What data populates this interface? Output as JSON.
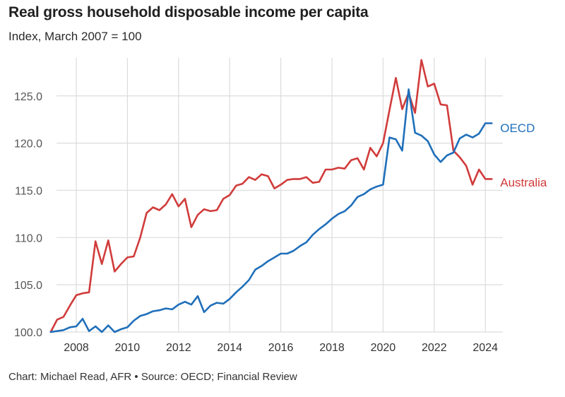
{
  "header": {
    "title": "Real gross household disposable income per capita",
    "subtitle": "Index, March 2007 = 100"
  },
  "footer": {
    "source": "Chart: Michael Read, AFR • Source: OECD; Financial Review"
  },
  "colors": {
    "oecd": "#1f6fba",
    "australia": "#d13b3b",
    "grid": "#dcdcdc"
  },
  "chart_data": {
    "type": "line",
    "title": "Real gross household disposable income per capita",
    "subtitle": "Index, March 2007 = 100",
    "ylim": [
      100,
      128
    ],
    "xlim": [
      2007.0,
      2024.5
    ],
    "yticks": [
      100.0,
      105.0,
      110.0,
      115.0,
      120.0,
      125.0
    ],
    "yticklabels": [
      "100.0",
      "105.0",
      "110.0",
      "115.0",
      "120.0",
      "125.0"
    ],
    "xticks": [
      2008,
      2010,
      2012,
      2014,
      2016,
      2018,
      2020,
      2022,
      2024
    ],
    "xticklabels": [
      "2008",
      "2010",
      "2012",
      "2014",
      "2016",
      "2018",
      "2020",
      "2022",
      "2024"
    ],
    "grid": "vertical-and-horizontal",
    "series": [
      {
        "name": "OECD",
        "x": [
          2007.0,
          2007.25,
          2007.5,
          2007.75,
          2008.0,
          2008.25,
          2008.5,
          2008.75,
          2009.0,
          2009.25,
          2009.5,
          2009.75,
          2010.0,
          2010.25,
          2010.5,
          2010.75,
          2011.0,
          2011.25,
          2011.5,
          2011.75,
          2012.0,
          2012.25,
          2012.5,
          2012.75,
          2013.0,
          2013.25,
          2013.5,
          2013.75,
          2014.0,
          2014.25,
          2014.5,
          2014.75,
          2015.0,
          2015.25,
          2015.5,
          2015.75,
          2016.0,
          2016.25,
          2016.5,
          2016.75,
          2017.0,
          2017.25,
          2017.5,
          2017.75,
          2018.0,
          2018.25,
          2018.5,
          2018.75,
          2019.0,
          2019.25,
          2019.5,
          2019.75,
          2020.0,
          2020.25,
          2020.5,
          2020.75,
          2021.0,
          2021.25,
          2021.5,
          2021.75,
          2022.0,
          2022.25,
          2022.5,
          2022.75,
          2023.0,
          2023.25,
          2023.5,
          2023.75,
          2024.0,
          2024.25
        ],
        "values": [
          100.0,
          100.1,
          100.2,
          100.5,
          100.6,
          101.4,
          100.1,
          100.6,
          100.0,
          100.7,
          100.0,
          100.3,
          100.5,
          101.2,
          101.7,
          101.9,
          102.2,
          102.3,
          102.5,
          102.4,
          102.9,
          103.2,
          102.9,
          103.8,
          102.1,
          102.8,
          103.1,
          103.0,
          103.5,
          104.2,
          104.8,
          105.5,
          106.6,
          107.0,
          107.5,
          107.9,
          108.3,
          108.3,
          108.6,
          109.1,
          109.5,
          110.3,
          110.9,
          111.4,
          112.0,
          112.5,
          112.8,
          113.4,
          114.3,
          114.6,
          115.1,
          115.4,
          115.6,
          120.6,
          120.4,
          119.2,
          125.7,
          121.1,
          120.8,
          120.2,
          118.8,
          118.0,
          118.7,
          119.0,
          120.5,
          120.9,
          120.6,
          121.0,
          122.1,
          122.1
        ]
      },
      {
        "name": "Australia",
        "x": [
          2007.0,
          2007.25,
          2007.5,
          2007.75,
          2008.0,
          2008.25,
          2008.5,
          2008.75,
          2009.0,
          2009.25,
          2009.5,
          2009.75,
          2010.0,
          2010.25,
          2010.5,
          2010.75,
          2011.0,
          2011.25,
          2011.5,
          2011.75,
          2012.0,
          2012.25,
          2012.5,
          2012.75,
          2013.0,
          2013.25,
          2013.5,
          2013.75,
          2014.0,
          2014.25,
          2014.5,
          2014.75,
          2015.0,
          2015.25,
          2015.5,
          2015.75,
          2016.0,
          2016.25,
          2016.5,
          2016.75,
          2017.0,
          2017.25,
          2017.5,
          2017.75,
          2018.0,
          2018.25,
          2018.5,
          2018.75,
          2019.0,
          2019.25,
          2019.5,
          2019.75,
          2020.0,
          2020.25,
          2020.5,
          2020.75,
          2021.0,
          2021.25,
          2021.5,
          2021.75,
          2022.0,
          2022.25,
          2022.5,
          2022.75,
          2023.0,
          2023.25,
          2023.5,
          2023.75,
          2024.0,
          2024.25
        ],
        "values": [
          100.0,
          101.3,
          101.6,
          102.8,
          103.9,
          104.1,
          104.2,
          109.6,
          107.2,
          109.7,
          106.4,
          107.2,
          107.9,
          108.0,
          110.0,
          112.6,
          113.2,
          112.9,
          113.5,
          114.6,
          113.3,
          114.1,
          111.1,
          112.4,
          113.0,
          112.8,
          112.9,
          114.1,
          114.5,
          115.5,
          115.7,
          116.4,
          116.1,
          116.7,
          116.5,
          115.2,
          115.6,
          116.1,
          116.2,
          116.2,
          116.4,
          115.8,
          115.9,
          117.2,
          117.2,
          117.4,
          117.3,
          118.2,
          118.4,
          117.2,
          119.5,
          118.6,
          120.0,
          123.5,
          126.9,
          123.6,
          125.3,
          123.2,
          128.8,
          126.0,
          126.3,
          124.1,
          124.0,
          119.2,
          118.5,
          117.6,
          115.6,
          117.2,
          116.2,
          116.2
        ]
      }
    ]
  }
}
